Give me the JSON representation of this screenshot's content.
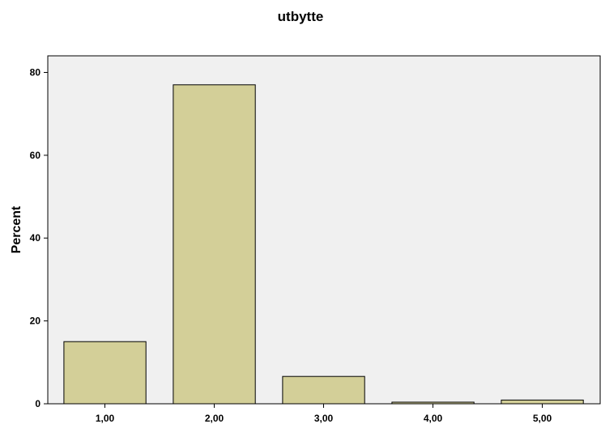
{
  "chart_data": {
    "type": "bar",
    "title": "utbytte",
    "xlabel": "",
    "ylabel": "Percent",
    "categories": [
      "1,00",
      "2,00",
      "3,00",
      "4,00",
      "5,00"
    ],
    "values": [
      15.0,
      77.0,
      6.6,
      0.4,
      0.9
    ],
    "ylim": [
      0,
      84
    ],
    "yticks": [
      "0",
      "20",
      "40",
      "60",
      "80"
    ],
    "grid": false,
    "colors": {
      "bar_fill": "#d3cf98",
      "bar_stroke": "#000000",
      "plot_background": "#f0f0f0",
      "axis": "#000000"
    }
  }
}
